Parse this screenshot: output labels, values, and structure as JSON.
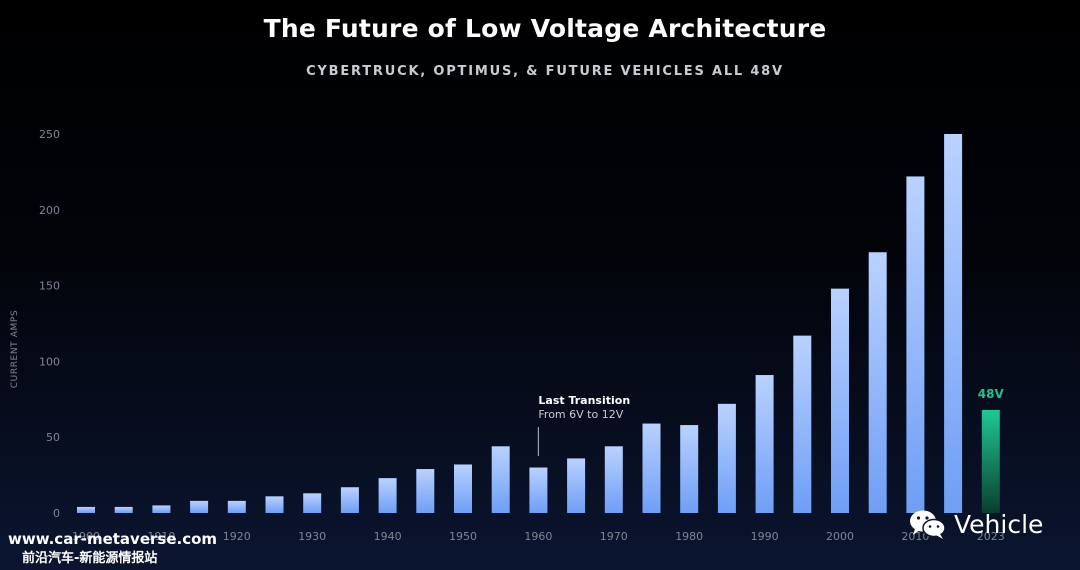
{
  "header": {
    "title": "The Future of Low Voltage Architecture",
    "subtitle": "CYBERTRUCK, OPTIMUS, & FUTURE VEHICLES ALL 48V"
  },
  "colors": {
    "bar_top": "#b9d2ff",
    "bar_bottom": "#6f9ef5",
    "highlight_top": "#1fc993",
    "highlight_bottom": "#0a3e2e",
    "highlight_label": "#22c28b",
    "axis_text": "#7e8594"
  },
  "chart_data": {
    "type": "bar",
    "title": "The Future of Low Voltage Architecture",
    "subtitle": "CYBERTRUCK, OPTIMUS, & FUTURE VEHICLES ALL 48V",
    "xlabel": "",
    "ylabel": "CURRENT AMPS",
    "ylim": [
      0,
      250
    ],
    "yticks": [
      0,
      50,
      100,
      150,
      200,
      250
    ],
    "x": [
      1900,
      1905,
      1910,
      1915,
      1920,
      1925,
      1930,
      1935,
      1940,
      1945,
      1950,
      1955,
      1960,
      1965,
      1970,
      1975,
      1980,
      1985,
      1990,
      1995,
      2000,
      2005,
      2010,
      2015,
      2023
    ],
    "values": [
      4,
      4,
      5,
      8,
      8,
      11,
      13,
      17,
      23,
      29,
      32,
      44,
      30,
      36,
      44,
      59,
      58,
      72,
      91,
      117,
      148,
      172,
      222,
      250,
      68
    ],
    "xtick_labels": [
      "1900",
      "1910",
      "1920",
      "1930",
      "1940",
      "1950",
      "1960",
      "1970",
      "1980",
      "1990",
      "2000",
      "2010",
      "2023"
    ],
    "xtick_years": [
      1900,
      1910,
      1920,
      1930,
      1940,
      1950,
      1960,
      1970,
      1980,
      1990,
      2000,
      2010,
      2023
    ],
    "highlight": {
      "x": 2023,
      "label": "48V"
    },
    "annotation": {
      "x": 1960,
      "title": "Last Transition",
      "text": "From 6V to 12V"
    },
    "grid": false,
    "legend": "none"
  },
  "watermark": {
    "url": "www.car-metaverse.com",
    "chinese": "前沿汽车-新能源情报站",
    "brand": "Vehicle"
  }
}
